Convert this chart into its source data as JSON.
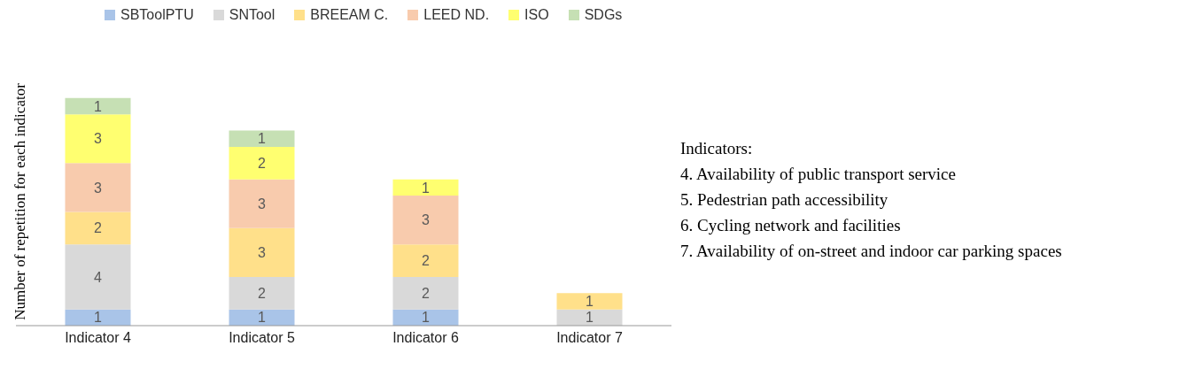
{
  "chart_data": {
    "type": "bar",
    "stacked": true,
    "ylabel": "Number of repetition for each indicator",
    "categories": [
      "Indicator 4",
      "Indicator 5",
      "Indicator 6",
      "Indicator 7"
    ],
    "series": [
      {
        "name": "SBToolPTU",
        "color": "#a9c4e8",
        "values": [
          1,
          1,
          1,
          null
        ]
      },
      {
        "name": "SNTool",
        "color": "#d9d9d9",
        "values": [
          4,
          2,
          2,
          1
        ]
      },
      {
        "name": "BREEAM C.",
        "color": "#ffe08a",
        "values": [
          2,
          3,
          2,
          1
        ]
      },
      {
        "name": "LEED ND.",
        "color": "#f8cbad",
        "values": [
          3,
          3,
          3,
          null
        ]
      },
      {
        "name": "ISO",
        "color": "#ffff70",
        "values": [
          3,
          2,
          1,
          null
        ]
      },
      {
        "name": "SDGs",
        "color": "#c6e0b4",
        "values": [
          1,
          1,
          null,
          null
        ]
      }
    ],
    "data_labels": true,
    "legend": "top",
    "grid": false,
    "annotations": [
      "Indicators:",
      "4. Availability of public transport service",
      "5. Pedestrian path accessibility",
      "6. Cycling network and facilities",
      "7. Availability of on-street and indoor car parking spaces"
    ]
  }
}
